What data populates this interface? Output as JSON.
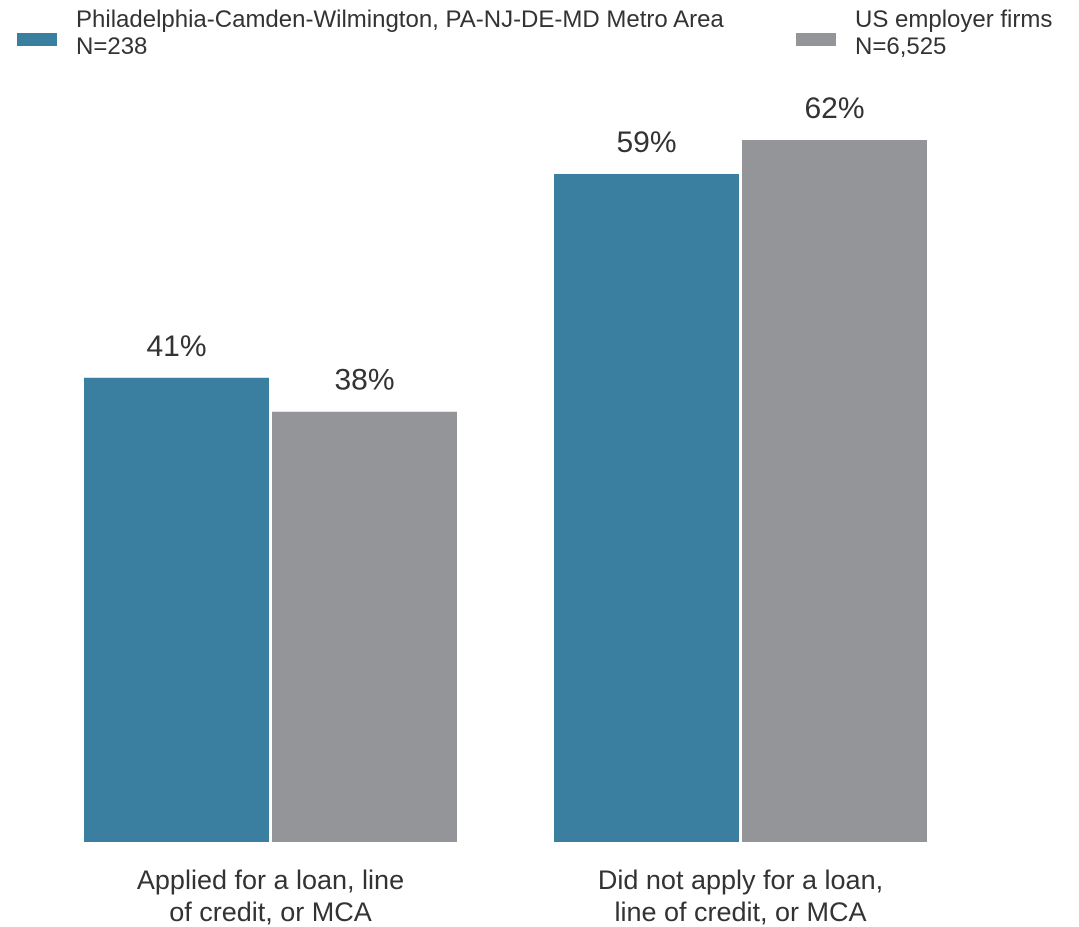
{
  "chart_data": {
    "type": "bar",
    "title": "",
    "xlabel": "",
    "ylabel": "",
    "categories": [
      [
        "Applied for a loan, line",
        "of credit, or MCA"
      ],
      [
        "Did not apply for a loan,",
        "line of credit, or MCA"
      ]
    ],
    "series": [
      {
        "name": "Philadelphia-Camden-Wilmington, PA-NJ-DE-MD Metro Area",
        "n_label": "N=238",
        "color": "#3a7fa0",
        "values": [
          41,
          59
        ],
        "labels": [
          "41%",
          "59%"
        ]
      },
      {
        "name": "US employer firms",
        "n_label": "N=6,525",
        "color": "#939598",
        "values": [
          38,
          62
        ],
        "labels": [
          "38%",
          "62%"
        ]
      }
    ],
    "ylim": [
      0,
      62
    ],
    "grid": false,
    "legend_position": "top"
  }
}
